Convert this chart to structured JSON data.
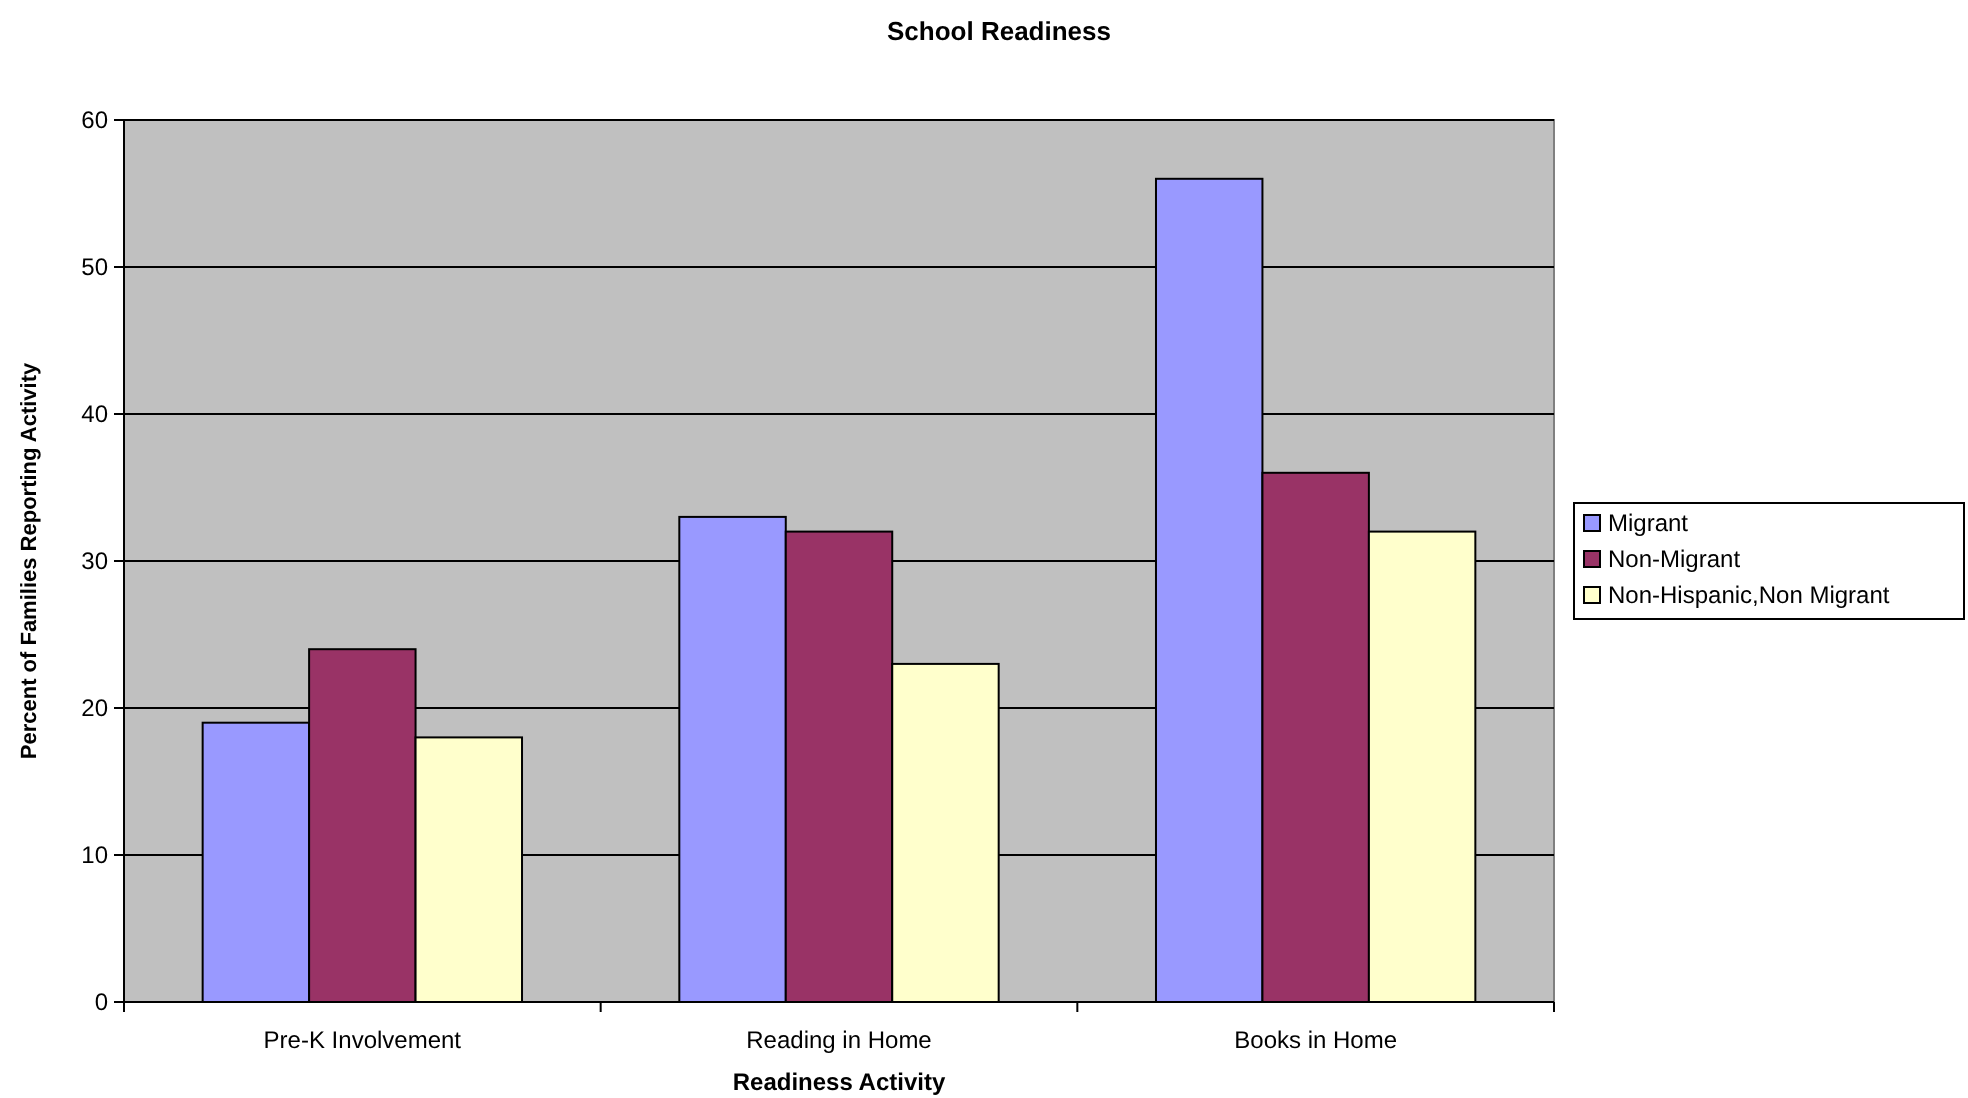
{
  "chart_data": {
    "type": "bar",
    "title": "School Readiness",
    "xlabel": "Readiness Activity",
    "ylabel": "Percent of Families Reporting Activity",
    "categories": [
      "Pre-K Involvement",
      "Reading in Home",
      "Books in Home"
    ],
    "series": [
      {
        "name": "Migrant",
        "color": "#9999ff",
        "values": [
          19,
          33,
          56
        ]
      },
      {
        "name": "Non-Migrant",
        "color": "#993366",
        "values": [
          24,
          32,
          36
        ]
      },
      {
        "name": "Non-Hispanic,Non Migrant",
        "color": "#ffffcc",
        "values": [
          18,
          23,
          32
        ]
      }
    ],
    "ylim": [
      0,
      60
    ],
    "yticks": [
      0,
      10,
      20,
      30,
      40,
      50,
      60
    ],
    "grid": "y",
    "legend": "right"
  }
}
